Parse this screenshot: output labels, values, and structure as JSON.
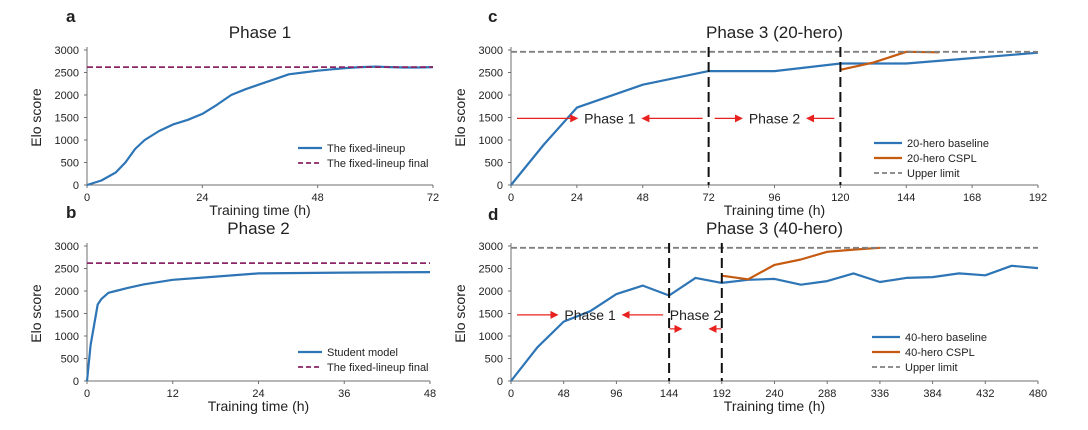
{
  "chart_data": [
    {
      "panel": "a",
      "type": "line",
      "title": "Phase 1",
      "xlabel": "Training time (h)",
      "ylabel": "Elo score",
      "xlim": [
        0,
        72
      ],
      "ylim": [
        0,
        3000
      ],
      "xticks": [
        0,
        24,
        48,
        72
      ],
      "yticks": [
        0,
        500,
        1000,
        1500,
        2000,
        2500,
        3000
      ],
      "legend_position": "bottom-right",
      "series": [
        {
          "name": "The fixed-lineup",
          "color": "#2e75b6",
          "style": "solid",
          "x": [
            0,
            3,
            6,
            8,
            10,
            12,
            15,
            18,
            21,
            24,
            27,
            30,
            33,
            36,
            39,
            42,
            45,
            48,
            51,
            54,
            57,
            60,
            63,
            66,
            69,
            72
          ],
          "y": [
            0,
            100,
            280,
            500,
            800,
            1000,
            1200,
            1350,
            1450,
            1580,
            1780,
            2000,
            2130,
            2240,
            2350,
            2460,
            2500,
            2540,
            2570,
            2600,
            2620,
            2630,
            2620,
            2610,
            2610,
            2620
          ]
        },
        {
          "name": "The fixed-lineup final",
          "color": "#8b2566",
          "style": "dashed",
          "x": [
            0,
            72
          ],
          "y": [
            2620,
            2620
          ]
        }
      ]
    },
    {
      "panel": "b",
      "type": "line",
      "title": "Phase 2",
      "xlabel": "Training time (h)",
      "ylabel": "Elo score",
      "xlim": [
        0,
        48
      ],
      "ylim": [
        0,
        3000
      ],
      "xticks": [
        0,
        12,
        24,
        36,
        48
      ],
      "yticks": [
        0,
        500,
        1000,
        1500,
        2000,
        2500,
        3000
      ],
      "legend_position": "bottom-right",
      "series": [
        {
          "name": "Student model",
          "color": "#2e75b6",
          "style": "solid",
          "x": [
            0,
            0.5,
            1.5,
            2,
            3,
            4,
            6,
            8,
            12,
            18,
            24,
            36,
            48
          ],
          "y": [
            0,
            800,
            1700,
            1820,
            1960,
            2000,
            2080,
            2150,
            2250,
            2320,
            2390,
            2410,
            2420
          ]
        },
        {
          "name": "The fixed-lineup final",
          "color": "#8b2566",
          "style": "dashed",
          "x": [
            0,
            48
          ],
          "y": [
            2620,
            2620
          ]
        }
      ]
    },
    {
      "panel": "c",
      "type": "line",
      "title": "Phase 3 (20-hero)",
      "xlabel": "Training time (h)",
      "ylabel": "Elo score",
      "xlim": [
        0,
        192
      ],
      "ylim": [
        0,
        3000
      ],
      "xticks": [
        0,
        24,
        48,
        72,
        96,
        120,
        144,
        168,
        192
      ],
      "yticks": [
        0,
        500,
        1000,
        1500,
        2000,
        2500,
        3000
      ],
      "legend_position": "bottom-right",
      "vlines": [
        72,
        120
      ],
      "annotations": [
        {
          "text": "Phase 1",
          "x": 36,
          "y": 1480
        },
        {
          "text": "Phase 2",
          "x": 96,
          "y": 1480
        }
      ],
      "series": [
        {
          "name": "20-hero baseline",
          "color": "#2e75b6",
          "style": "solid",
          "x": [
            0,
            12,
            24,
            48,
            72,
            96,
            120,
            144,
            168,
            192
          ],
          "y": [
            0,
            900,
            1720,
            2230,
            2530,
            2530,
            2700,
            2700,
            2820,
            2940
          ]
        },
        {
          "name": "20-hero CSPL",
          "color": "#c55a11",
          "style": "solid",
          "x": [
            120,
            132,
            144,
            156
          ],
          "y": [
            2560,
            2720,
            2960,
            2950
          ]
        },
        {
          "name": "Upper limit",
          "color": "#808080",
          "style": "dashed",
          "x": [
            0,
            192
          ],
          "y": [
            2960,
            2960
          ]
        }
      ]
    },
    {
      "panel": "d",
      "type": "line",
      "title": "Phase 3 (40-hero)",
      "xlabel": "Training time (h)",
      "ylabel": "Elo score",
      "xlim": [
        0,
        480
      ],
      "ylim": [
        0,
        3000
      ],
      "xticks": [
        0,
        48,
        96,
        144,
        192,
        240,
        288,
        336,
        384,
        432,
        480
      ],
      "yticks": [
        0,
        500,
        1000,
        1500,
        2000,
        2500,
        3000
      ],
      "legend_position": "bottom-right",
      "vlines": [
        144,
        192
      ],
      "annotations": [
        {
          "text": "Phase 1",
          "x": 72,
          "y": 1470
        },
        {
          "text": "Phase 2",
          "x": 168,
          "y": 1470
        }
      ],
      "series": [
        {
          "name": "40-hero baseline",
          "color": "#2e75b6",
          "style": "solid",
          "x": [
            0,
            24,
            48,
            72,
            96,
            120,
            144,
            168,
            192,
            216,
            240,
            264,
            288,
            312,
            336,
            360,
            384,
            408,
            432,
            456,
            480
          ],
          "y": [
            0,
            750,
            1320,
            1550,
            1930,
            2120,
            1900,
            2290,
            2180,
            2250,
            2270,
            2140,
            2220,
            2390,
            2200,
            2290,
            2310,
            2390,
            2350,
            2560,
            2510
          ]
        },
        {
          "name": "40-hero CSPL",
          "color": "#c55a11",
          "style": "solid",
          "x": [
            192,
            216,
            240,
            264,
            288,
            312,
            336
          ],
          "y": [
            2340,
            2260,
            2580,
            2700,
            2870,
            2920,
            2960
          ]
        },
        {
          "name": "Upper limit",
          "color": "#808080",
          "style": "dashed",
          "x": [
            0,
            480
          ],
          "y": [
            2960,
            2960
          ]
        }
      ]
    }
  ]
}
